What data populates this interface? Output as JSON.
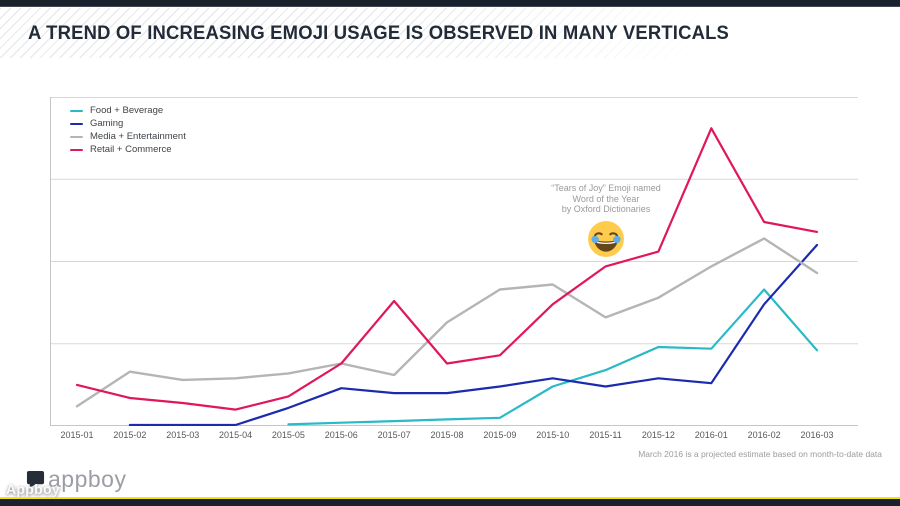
{
  "header": {
    "title": "A TREND OF INCREASING EMOJI USAGE IS OBSERVED IN MANY VERTICALS"
  },
  "chart_data": {
    "type": "line",
    "title": "A TREND OF INCREASING EMOJI USAGE IS OBSERVED IN MANY VERTICALS",
    "x": [
      "2015-01",
      "2015-02",
      "2015-03",
      "2015-04",
      "2015-05",
      "2015-06",
      "2015-07",
      "2015-08",
      "2015-09",
      "2015-10",
      "2015-11",
      "2015-12",
      "2016-01",
      "2016-02",
      "2016-03"
    ],
    "xlabel": "",
    "ylabel": "",
    "ylim": [
      0,
      100
    ],
    "grid": "horizontal",
    "legend_position": "top-left",
    "series": [
      {
        "name": "Food + Beverage",
        "color": "#29b9c7",
        "values": [
          null,
          null,
          null,
          null,
          0.5,
          1,
          1.5,
          2,
          2.5,
          12,
          17,
          24,
          23.5,
          41.5,
          23
        ]
      },
      {
        "name": "Gaming",
        "color": "#1b2aae",
        "values": [
          null,
          0.3,
          0.3,
          0.3,
          5.5,
          11.5,
          10,
          10,
          12,
          14.5,
          12,
          14.5,
          13,
          37,
          55
        ]
      },
      {
        "name": "Media + Entertainment",
        "color": "#b5b5b5",
        "values": [
          6,
          16.5,
          14,
          14.5,
          16,
          19,
          15.5,
          31.5,
          41.5,
          43,
          33,
          39,
          48.5,
          57,
          46.5
        ]
      },
      {
        "name": "Retail + Commerce",
        "color": "#e0175c",
        "values": [
          12.5,
          8.5,
          7,
          5,
          9,
          19,
          38,
          19,
          21.5,
          37,
          48.5,
          53,
          90.5,
          62,
          59
        ]
      }
    ],
    "annotation": {
      "lines": [
        "“Tears of Joy” Emoji named",
        "Word of the Year",
        "by Oxford Dictionaries"
      ],
      "emoji": "face-with-tears-of-joy",
      "anchor_x": "2015-11"
    },
    "footnote": "March 2016 is a projected estimate based on month-to-date data"
  },
  "footer": {
    "logo_text": "appboy",
    "watermark": "Appboy"
  }
}
